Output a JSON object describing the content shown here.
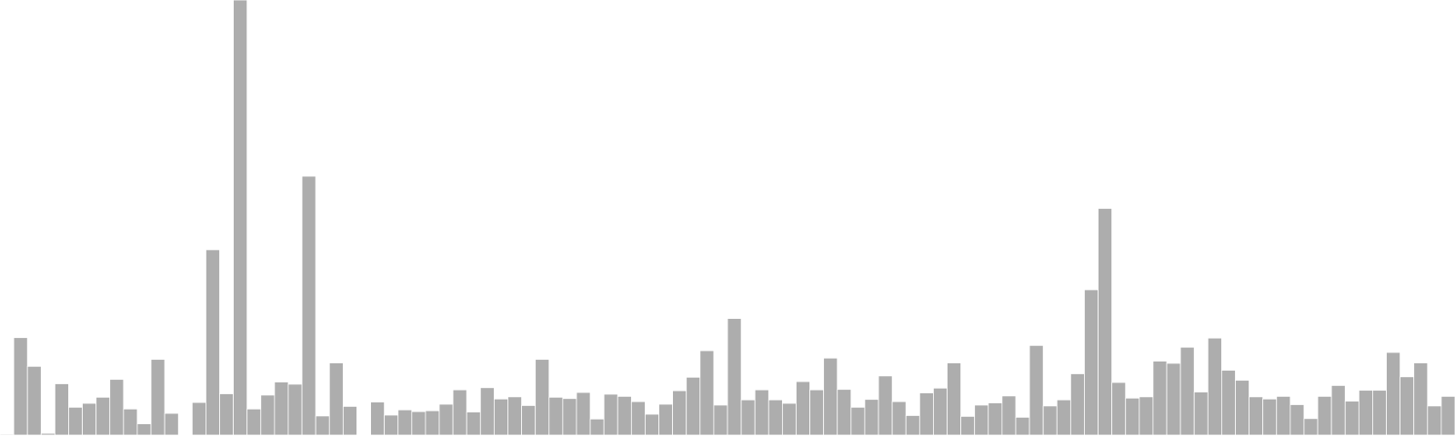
{
  "chart_data": {
    "type": "bar",
    "title": "",
    "xlabel": "",
    "ylabel": "",
    "grid": false,
    "legend": "none",
    "bar_color": "#adadad",
    "bar_edge_color": "#ffffff",
    "ylim": [
      0,
      100
    ],
    "x": [
      0,
      1,
      2,
      3,
      4,
      5,
      6,
      7,
      8,
      9,
      10,
      11,
      12,
      13,
      14,
      15,
      16,
      17,
      18,
      19,
      20,
      21,
      22,
      23,
      24,
      25,
      26,
      27,
      28,
      29,
      30,
      31,
      32,
      33,
      34,
      35,
      36,
      37,
      38,
      39,
      40,
      41,
      42,
      43,
      44,
      45,
      46,
      47,
      48,
      49,
      50,
      51,
      52,
      53,
      54,
      55,
      56,
      57,
      58,
      59,
      60,
      61,
      62,
      63,
      64,
      65,
      66,
      67,
      68,
      69,
      70,
      71,
      72,
      73,
      74,
      75,
      76,
      77,
      78,
      79,
      80,
      81,
      82,
      83,
      84,
      85,
      86,
      87,
      88,
      89,
      90,
      91,
      92,
      93,
      94,
      95,
      96,
      97,
      98,
      99,
      100,
      101,
      102,
      103,
      104,
      105
    ],
    "values": [
      0.2,
      22.4,
      15.8,
      0.4,
      11.8,
      6.4,
      7.3,
      8.7,
      12.8,
      6.0,
      2.6,
      17.4,
      5.0,
      0,
      7.5,
      42.6,
      9.5,
      100,
      6.0,
      9.2,
      12.2,
      11.7,
      59.5,
      4.4,
      16.6,
      6.6,
      0,
      7.6,
      4.6,
      5.8,
      5.4,
      5.6,
      7.1,
      10.4,
      5.3,
      10.9,
      8.3,
      8.8,
      6.8,
      17.4,
      8.7,
      8.4,
      9.8,
      3.7,
      9.4,
      8.9,
      7.7,
      4.8,
      7.1,
      10.2,
      13.3,
      19.4,
      6.9,
      26.8,
      8.1,
      10.4,
      8.1,
      7.3,
      12.3,
      10.4,
      17.7,
      10.5,
      6.4,
      8.2,
      13.6,
      7.7,
      4.5,
      9.7,
      10.8,
      16.6,
      4.3,
      6.9,
      7.4,
      9.0,
      4.1,
      20.6,
      6.7,
      8.1,
      14.1,
      33.4,
      52.1,
      12.1,
      8.5,
      8.8,
      17.0,
      16.5,
      20.2,
      9.9,
      22.3,
      14.9,
      12.6,
      8.8,
      8.3,
      8.9,
      7.0,
      3.8,
      8.9,
      11.4,
      7.8,
      10.3,
      10.3,
      19.0,
      13.4,
      16.6,
      6.7,
      8.9
    ]
  }
}
